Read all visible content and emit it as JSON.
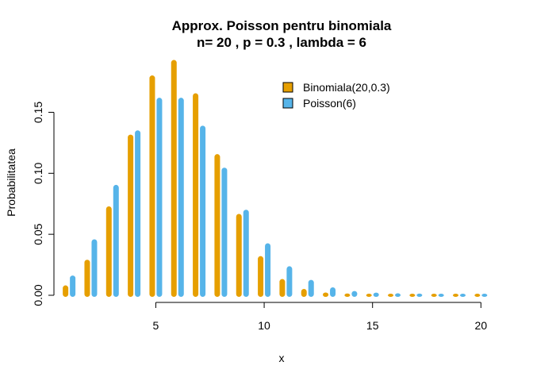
{
  "chart_data": {
    "type": "bar",
    "title_line1": "Approx. Poisson pentru binomiala",
    "title_line2": "n= 20 , p =  0.3 , lambda =  6",
    "xlabel": "x",
    "ylabel": "Probabilitatea",
    "x": [
      1,
      2,
      3,
      4,
      5,
      6,
      7,
      8,
      9,
      10,
      11,
      12,
      13,
      14,
      15,
      16,
      17,
      18,
      19,
      20
    ],
    "series": [
      {
        "name": "Binomiala(20,0.3)",
        "color": "#E69F00",
        "values": [
          0.0068,
          0.0278,
          0.0716,
          0.1304,
          0.1789,
          0.1916,
          0.1643,
          0.1144,
          0.0654,
          0.0308,
          0.012,
          0.0039,
          0.001,
          0.0002,
          0.0,
          0.0,
          0.0,
          0.0,
          0.0,
          0.0
        ]
      },
      {
        "name": "Poisson(6)",
        "color": "#56B4E9",
        "values": [
          0.0149,
          0.0446,
          0.0892,
          0.1339,
          0.1606,
          0.1606,
          0.1377,
          0.1033,
          0.0688,
          0.0413,
          0.0225,
          0.0113,
          0.0052,
          0.0022,
          0.0009,
          0.0003,
          0.0001,
          0.0,
          0.0,
          0.0
        ]
      }
    ],
    "xlim": [
      0.3,
      20.5
    ],
    "ylim": [
      0,
      0.19
    ],
    "x_ticks": [
      5,
      10,
      15,
      20
    ],
    "y_ticks": [
      0.0,
      0.05,
      0.1,
      0.15
    ],
    "y_tick_labels": [
      "0.00",
      "0.05",
      "0.10",
      "0.15"
    ],
    "grid": false,
    "legend_position": "top-right"
  }
}
